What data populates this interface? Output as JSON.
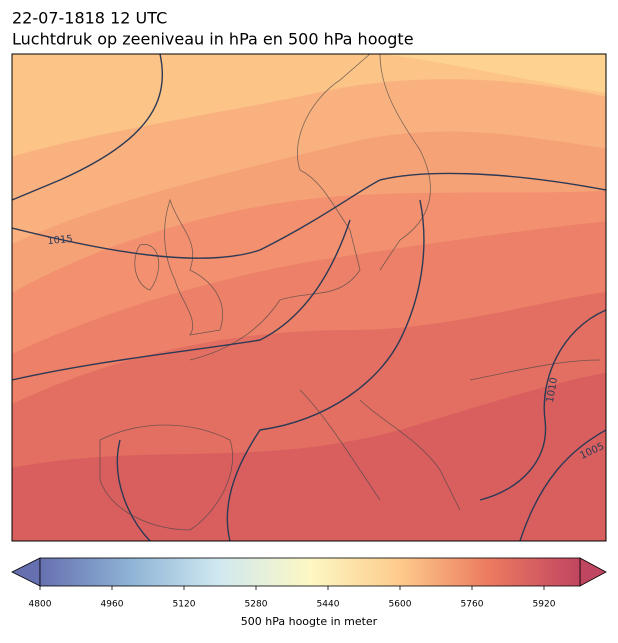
{
  "title": "22-07-1818 12 UTC",
  "subtitle": "Luchtdruk op zeeniveau in hPa en 500 hPa hoogte",
  "contour_labels": [
    "1015",
    "1010",
    "1005"
  ],
  "colorbar": {
    "lim": [
      4800,
      6000
    ],
    "ticks": [
      4800,
      4960,
      5120,
      5280,
      5440,
      5600,
      5760,
      5920
    ],
    "label": "500 hPa hoogte in meter"
  }
}
